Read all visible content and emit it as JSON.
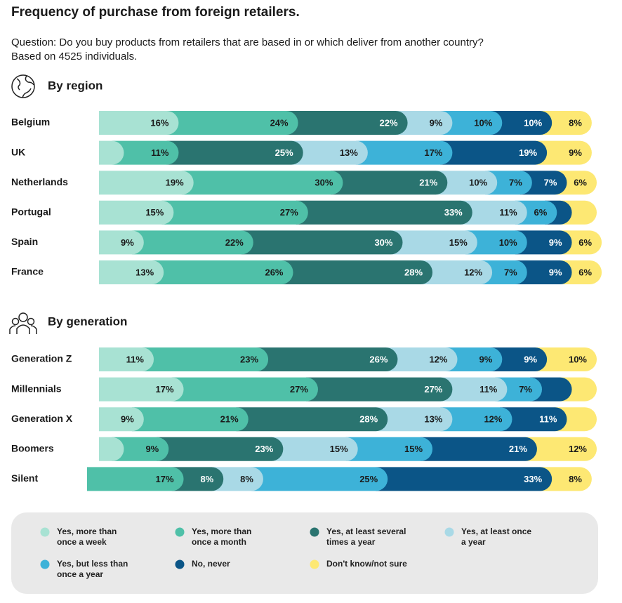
{
  "chart_data": {
    "type": "stacked_bar",
    "title": "Frequency of purchase from foreign retailers.",
    "subtitle": [
      "Question: Do you buy products from retailers that are based in or which deliver from another country?",
      "Based on 4525 individuals."
    ],
    "series": [
      {
        "name": "Yes, more than once a week",
        "color": "#a8e2d3"
      },
      {
        "name": "Yes, more than once a month",
        "color": "#4fc0a8"
      },
      {
        "name": "Yes, at least several times a year",
        "color": "#2a7470"
      },
      {
        "name": "Yes, at least once a year",
        "color": "#a9d9e6"
      },
      {
        "name": "Yes, but less than once a year",
        "color": "#3db2d8"
      },
      {
        "name": "No, never",
        "color": "#0b5587"
      },
      {
        "name": "Don't know/not sure",
        "color": "#fde873"
      }
    ],
    "panels": [
      {
        "title": "By region",
        "categories": [
          "Belgium",
          "UK",
          "Netherlands",
          "Portugal",
          "Spain",
          "France"
        ],
        "series": [
          {
            "values": [
              16,
              5,
              19,
              15,
              9,
              13
            ],
            "value_labels": [
              "16%",
              null,
              "19%",
              "15%",
              "9%",
              "13%"
            ]
          },
          {
            "values": [
              24,
              11,
              30,
              27,
              22,
              26
            ],
            "value_labels": [
              "24%",
              "11%",
              "30%",
              "27%",
              "22%",
              "26%"
            ]
          },
          {
            "values": [
              22,
              25,
              21,
              33,
              30,
              28
            ],
            "value_labels": [
              "22%",
              "25%",
              "21%",
              "33%",
              "30%",
              "28%"
            ]
          },
          {
            "values": [
              9,
              13,
              10,
              11,
              15,
              12
            ],
            "value_labels": [
              "9%",
              "13%",
              "10%",
              "11%",
              "15%",
              "12%"
            ]
          },
          {
            "values": [
              10,
              17,
              7,
              6,
              10,
              7
            ],
            "value_labels": [
              "10%",
              "17%",
              "7%",
              "6%",
              "10%",
              "7%"
            ]
          },
          {
            "values": [
              10,
              19,
              7,
              3,
              9,
              9
            ],
            "value_labels": [
              "10%",
              "19%",
              "7%",
              null,
              "9%",
              "9%"
            ]
          },
          {
            "values": [
              8,
              9,
              6,
              5,
              6,
              6
            ],
            "value_labels": [
              "8%",
              "9%",
              "6%",
              null,
              "6%",
              "6%"
            ]
          }
        ]
      },
      {
        "title": "By generation",
        "categories": [
          "Generation Z",
          "Millennials",
          "Generation X",
          "Boomers",
          "Silent"
        ],
        "series": [
          {
            "values": [
              11,
              17,
              9,
              5,
              0
            ],
            "value_labels": [
              "11%",
              "17%",
              "9%",
              null,
              null
            ]
          },
          {
            "values": [
              23,
              27,
              21,
              9,
              17
            ],
            "value_labels": [
              "23%",
              "27%",
              "21%",
              "9%",
              "17%"
            ]
          },
          {
            "values": [
              26,
              27,
              28,
              23,
              8
            ],
            "value_labels": [
              "26%",
              "27%",
              "28%",
              "23%",
              "8%"
            ]
          },
          {
            "values": [
              12,
              11,
              13,
              15,
              8
            ],
            "value_labels": [
              "12%",
              "11%",
              "13%",
              "15%",
              "8%"
            ]
          },
          {
            "values": [
              9,
              7,
              12,
              15,
              25
            ],
            "value_labels": [
              "9%",
              "7%",
              "12%",
              "15%",
              "25%"
            ]
          },
          {
            "values": [
              9,
              6,
              11,
              21,
              33
            ],
            "value_labels": [
              "9%",
              null,
              "11%",
              "21%",
              "33%"
            ]
          },
          {
            "values": [
              10,
              5,
              6,
              12,
              8
            ],
            "value_labels": [
              "10%",
              null,
              null,
              "12%",
              "8%"
            ]
          }
        ]
      }
    ],
    "xlim": [
      0,
      100
    ]
  }
}
